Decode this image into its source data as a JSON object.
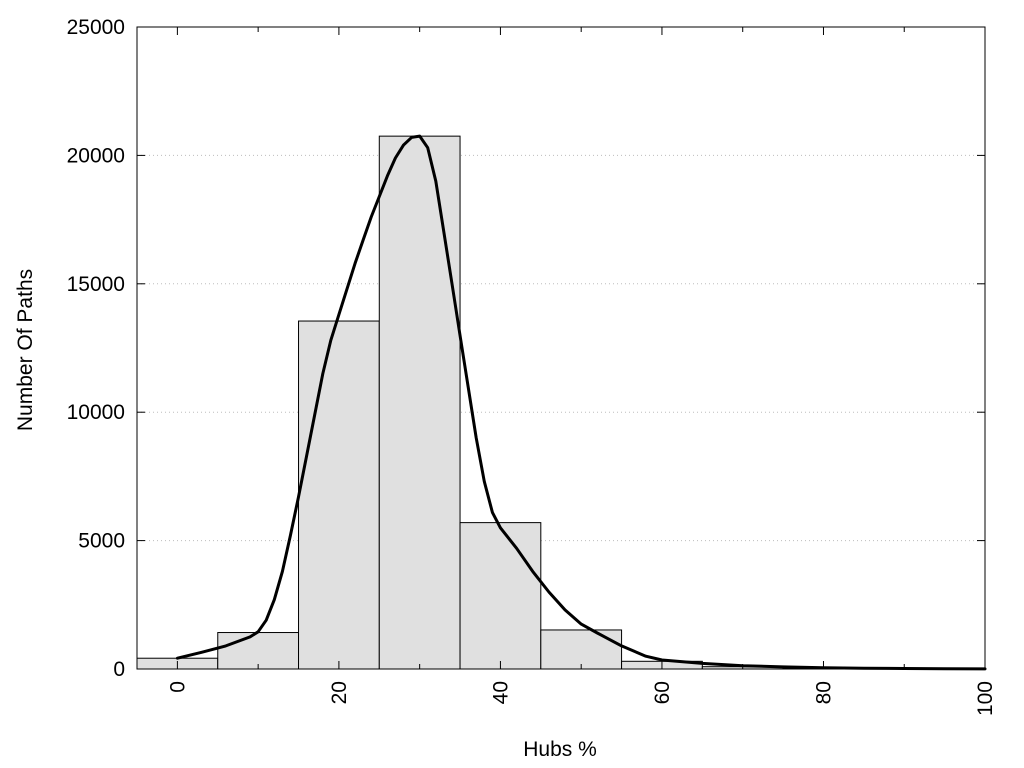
{
  "chart_data": {
    "type": "bar",
    "title": "",
    "xlabel": "Hubs %",
    "ylabel": "Number Of Paths",
    "xlim": [
      -5,
      100
    ],
    "ylim": [
      0,
      25000
    ],
    "x_ticks": [
      0,
      20,
      40,
      60,
      80,
      100
    ],
    "y_ticks": [
      0,
      5000,
      10000,
      15000,
      20000,
      25000
    ],
    "grid": "horizontal dotted",
    "bins": [
      {
        "x0": -5,
        "x1": 5,
        "value": 420
      },
      {
        "x0": 5,
        "x1": 15,
        "value": 1420
      },
      {
        "x0": 15,
        "x1": 25,
        "value": 13550
      },
      {
        "x0": 25,
        "x1": 35,
        "value": 20750
      },
      {
        "x0": 35,
        "x1": 45,
        "value": 5700
      },
      {
        "x0": 45,
        "x1": 55,
        "value": 1520
      },
      {
        "x0": 55,
        "x1": 65,
        "value": 300
      },
      {
        "x0": 65,
        "x1": 75,
        "value": 90
      },
      {
        "x0": 75,
        "x1": 85,
        "value": 40
      },
      {
        "x0": 85,
        "x1": 95,
        "value": 20
      },
      {
        "x0": 95,
        "x1": 100,
        "value": 10
      }
    ],
    "curve": {
      "x": [
        0,
        3,
        6,
        9,
        10,
        11,
        12,
        13,
        14,
        15,
        16,
        17,
        18,
        19,
        20,
        21,
        22,
        23,
        24,
        25,
        26,
        27,
        28,
        29,
        30,
        31,
        32,
        33,
        34,
        35,
        36,
        37,
        38,
        39,
        40,
        42,
        44,
        46,
        48,
        50,
        52,
        55,
        58,
        60,
        65,
        70,
        75,
        80,
        85,
        90,
        95,
        100
      ],
      "y": [
        420,
        650,
        900,
        1250,
        1450,
        1900,
        2700,
        3800,
        5200,
        6700,
        8300,
        9900,
        11500,
        12800,
        13800,
        14800,
        15800,
        16700,
        17600,
        18400,
        19200,
        19900,
        20400,
        20700,
        20750,
        20300,
        19000,
        17000,
        15000,
        13000,
        11000,
        9000,
        7300,
        6100,
        5500,
        4700,
        3800,
        3000,
        2300,
        1750,
        1400,
        900,
        500,
        350,
        220,
        130,
        80,
        50,
        30,
        20,
        10,
        5
      ]
    }
  }
}
